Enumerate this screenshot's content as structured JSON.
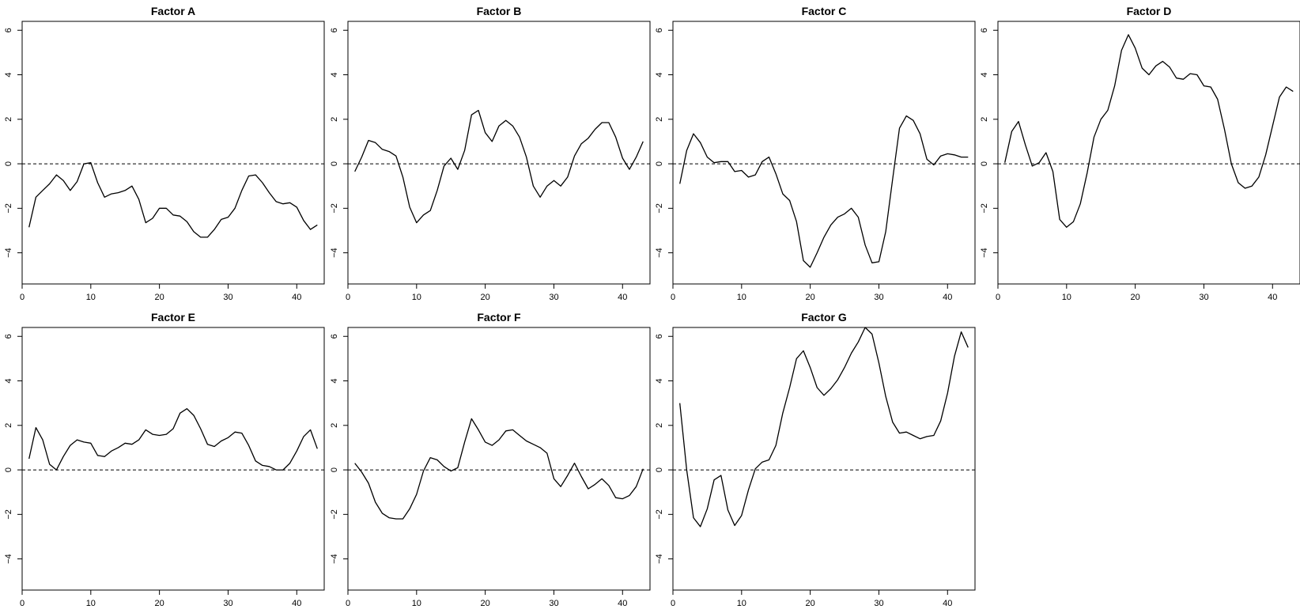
{
  "chart_data": [
    {
      "type": "line",
      "title": "Factor A",
      "xlim": [
        0,
        44
      ],
      "ylim": [
        -5.4,
        6.4
      ],
      "xticks": [
        0,
        10,
        20,
        30,
        40
      ],
      "yticks": [
        -4,
        -2,
        0,
        2,
        4,
        6
      ],
      "reference_line": 0,
      "x": [
        1,
        2,
        3,
        4,
        5,
        6,
        7,
        8,
        9,
        10,
        11,
        12,
        13,
        14,
        15,
        16,
        17,
        18,
        19,
        20,
        21,
        22,
        23,
        24,
        25,
        26,
        27,
        28,
        29,
        30,
        31,
        32,
        33,
        34,
        35,
        36,
        37,
        38,
        39,
        40,
        41,
        42,
        43
      ],
      "values": [
        -2.85,
        -1.5,
        -1.2,
        -0.9,
        -0.5,
        -0.75,
        -1.2,
        -0.8,
        0.0,
        0.05,
        -0.85,
        -1.5,
        -1.35,
        -1.3,
        -1.2,
        -1.0,
        -1.6,
        -2.65,
        -2.45,
        -2.0,
        -2.0,
        -2.3,
        -2.35,
        -2.6,
        -3.05,
        -3.3,
        -3.3,
        -2.95,
        -2.5,
        -2.4,
        -2.0,
        -1.2,
        -0.55,
        -0.5,
        -0.85,
        -1.3,
        -1.7,
        -1.8,
        -1.75,
        -1.95,
        -2.55,
        -2.95,
        -2.75
      ]
    },
    {
      "type": "line",
      "title": "Factor B",
      "xlim": [
        0,
        44
      ],
      "ylim": [
        -5.4,
        6.4
      ],
      "xticks": [
        0,
        10,
        20,
        30,
        40
      ],
      "yticks": [
        -4,
        -2,
        0,
        2,
        4,
        6
      ],
      "reference_line": 0,
      "x": [
        1,
        2,
        3,
        4,
        5,
        6,
        7,
        8,
        9,
        10,
        11,
        12,
        13,
        14,
        15,
        16,
        17,
        18,
        19,
        20,
        21,
        22,
        23,
        24,
        25,
        26,
        27,
        28,
        29,
        30,
        31,
        32,
        33,
        34,
        35,
        36,
        37,
        38,
        39,
        40,
        41,
        42,
        43
      ],
      "values": [
        -0.35,
        0.3,
        1.05,
        0.95,
        0.65,
        0.55,
        0.35,
        -0.6,
        -1.95,
        -2.65,
        -2.3,
        -2.1,
        -1.2,
        -0.1,
        0.25,
        -0.25,
        0.6,
        2.2,
        2.4,
        1.4,
        1.0,
        1.7,
        1.95,
        1.7,
        1.2,
        0.3,
        -1.0,
        -1.5,
        -1.0,
        -0.75,
        -1.0,
        -0.6,
        0.35,
        0.9,
        1.15,
        1.55,
        1.85,
        1.85,
        1.2,
        0.25,
        -0.25,
        0.3,
        1.0
      ]
    },
    {
      "type": "line",
      "title": "Factor C",
      "xlim": [
        0,
        44
      ],
      "ylim": [
        -5.4,
        6.4
      ],
      "xticks": [
        0,
        10,
        20,
        30,
        40
      ],
      "yticks": [
        -4,
        -2,
        0,
        2,
        4,
        6
      ],
      "reference_line": 0,
      "x": [
        1,
        2,
        3,
        4,
        5,
        6,
        7,
        8,
        9,
        10,
        11,
        12,
        13,
        14,
        15,
        16,
        17,
        18,
        19,
        20,
        21,
        22,
        23,
        24,
        25,
        26,
        27,
        28,
        29,
        30,
        31,
        32,
        33,
        34,
        35,
        36,
        37,
        38,
        39,
        40,
        41,
        42,
        43
      ],
      "values": [
        -0.9,
        0.6,
        1.35,
        0.95,
        0.3,
        0.05,
        0.1,
        0.1,
        -0.35,
        -0.3,
        -0.6,
        -0.5,
        0.1,
        0.3,
        -0.45,
        -1.35,
        -1.65,
        -2.6,
        -4.35,
        -4.65,
        -4.0,
        -3.3,
        -2.75,
        -2.4,
        -2.25,
        -2.0,
        -2.4,
        -3.65,
        -4.45,
        -4.4,
        -3.05,
        -0.7,
        1.6,
        2.15,
        1.95,
        1.35,
        0.2,
        -0.05,
        0.35,
        0.45,
        0.4,
        0.3,
        0.3
      ]
    },
    {
      "type": "line",
      "title": "Factor D",
      "xlim": [
        0,
        44
      ],
      "ylim": [
        -5.4,
        6.4
      ],
      "xticks": [
        0,
        10,
        20,
        30,
        40
      ],
      "yticks": [
        -4,
        -2,
        0,
        2,
        4,
        6
      ],
      "reference_line": 0,
      "x": [
        1,
        2,
        3,
        4,
        5,
        6,
        7,
        8,
        9,
        10,
        11,
        12,
        13,
        14,
        15,
        16,
        17,
        18,
        19,
        20,
        21,
        22,
        23,
        24,
        25,
        26,
        27,
        28,
        29,
        30,
        31,
        32,
        33,
        34,
        35,
        36,
        37,
        38,
        39,
        40,
        41,
        42,
        43
      ],
      "values": [
        0.05,
        1.45,
        1.9,
        0.85,
        -0.1,
        0.05,
        0.5,
        -0.35,
        -2.5,
        -2.85,
        -2.6,
        -1.8,
        -0.4,
        1.2,
        2.0,
        2.4,
        3.5,
        5.1,
        5.8,
        5.2,
        4.3,
        4.0,
        4.4,
        4.6,
        4.35,
        3.85,
        3.8,
        4.05,
        4.0,
        3.5,
        3.45,
        2.9,
        1.55,
        0.0,
        -0.85,
        -1.1,
        -1.0,
        -0.6,
        0.4,
        1.7,
        3.0,
        3.45,
        3.25
      ]
    },
    {
      "type": "line",
      "title": "Factor E",
      "xlim": [
        0,
        44
      ],
      "ylim": [
        -5.4,
        6.4
      ],
      "xticks": [
        0,
        10,
        20,
        30,
        40
      ],
      "yticks": [
        -4,
        -2,
        0,
        2,
        4,
        6
      ],
      "reference_line": 0,
      "x": [
        1,
        2,
        3,
        4,
        5,
        6,
        7,
        8,
        9,
        10,
        11,
        12,
        13,
        14,
        15,
        16,
        17,
        18,
        19,
        20,
        21,
        22,
        23,
        24,
        25,
        26,
        27,
        28,
        29,
        30,
        31,
        32,
        33,
        34,
        35,
        36,
        37,
        38,
        39,
        40,
        41,
        42,
        43
      ],
      "values": [
        0.5,
        1.9,
        1.35,
        0.25,
        0.0,
        0.6,
        1.1,
        1.35,
        1.25,
        1.2,
        0.65,
        0.6,
        0.85,
        1.0,
        1.2,
        1.15,
        1.35,
        1.8,
        1.6,
        1.55,
        1.6,
        1.85,
        2.55,
        2.75,
        2.45,
        1.85,
        1.15,
        1.05,
        1.3,
        1.45,
        1.7,
        1.65,
        1.1,
        0.4,
        0.2,
        0.15,
        0.0,
        0.0,
        0.3,
        0.85,
        1.5,
        1.8,
        0.95
      ]
    },
    {
      "type": "line",
      "title": "Factor F",
      "xlim": [
        0,
        44
      ],
      "ylim": [
        -5.4,
        6.4
      ],
      "xticks": [
        0,
        10,
        20,
        30,
        40
      ],
      "yticks": [
        -4,
        -2,
        0,
        2,
        4,
        6
      ],
      "reference_line": 0,
      "x": [
        1,
        2,
        3,
        4,
        5,
        6,
        7,
        8,
        9,
        10,
        11,
        12,
        13,
        14,
        15,
        16,
        17,
        18,
        19,
        20,
        21,
        22,
        23,
        24,
        25,
        26,
        27,
        28,
        29,
        30,
        31,
        32,
        33,
        34,
        35,
        36,
        37,
        38,
        39,
        40,
        41,
        42,
        43
      ],
      "values": [
        0.3,
        -0.1,
        -0.6,
        -1.45,
        -1.95,
        -2.15,
        -2.2,
        -2.2,
        -1.75,
        -1.1,
        -0.05,
        0.55,
        0.45,
        0.15,
        -0.05,
        0.1,
        1.25,
        2.3,
        1.8,
        1.25,
        1.1,
        1.35,
        1.75,
        1.8,
        1.55,
        1.3,
        1.15,
        1.0,
        0.75,
        -0.4,
        -0.75,
        -0.25,
        0.3,
        -0.3,
        -0.85,
        -0.65,
        -0.4,
        -0.7,
        -1.25,
        -1.3,
        -1.15,
        -0.75,
        0.05
      ]
    },
    {
      "type": "line",
      "title": "Factor G",
      "xlim": [
        0,
        44
      ],
      "ylim": [
        -5.4,
        6.4
      ],
      "xticks": [
        0,
        10,
        20,
        30,
        40
      ],
      "yticks": [
        -4,
        -2,
        0,
        2,
        4,
        6
      ],
      "reference_line": 0,
      "x": [
        1,
        2,
        3,
        4,
        5,
        6,
        7,
        8,
        9,
        10,
        11,
        12,
        13,
        14,
        15,
        16,
        17,
        18,
        19,
        20,
        21,
        22,
        23,
        24,
        25,
        26,
        27,
        28,
        29,
        30,
        31,
        32,
        33,
        34,
        35,
        36,
        37,
        38,
        39,
        40,
        41,
        42,
        43
      ],
      "values": [
        3.0,
        0.0,
        -2.15,
        -2.55,
        -1.75,
        -0.45,
        -0.25,
        -1.8,
        -2.5,
        -2.05,
        -0.9,
        0.05,
        0.35,
        0.45,
        1.1,
        2.55,
        3.7,
        5.0,
        5.35,
        4.6,
        3.7,
        3.35,
        3.65,
        4.05,
        4.6,
        5.25,
        5.75,
        6.4,
        6.1,
        4.8,
        3.3,
        2.15,
        1.65,
        1.7,
        1.55,
        1.4,
        1.5,
        1.55,
        2.2,
        3.45,
        5.1,
        6.2,
        5.5
      ]
    }
  ]
}
